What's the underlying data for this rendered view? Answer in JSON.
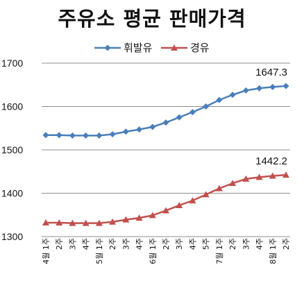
{
  "chart_data": {
    "type": "line",
    "title": "주유소 평균 판매가격",
    "categories": [
      "4월 1주",
      "2주",
      "3주",
      "4주",
      "5월 1주",
      "2주",
      "3주",
      "4주",
      "6월 1주",
      "2주",
      "3주",
      "4주",
      "5주",
      "7월 1주",
      "2주",
      "3주",
      "4주",
      "8월 1주",
      "2주"
    ],
    "series": [
      {
        "name": "휘발유",
        "color": "#4a7ebb",
        "values": [
          1534,
          1534,
          1533,
          1533,
          1533,
          1536,
          1542,
          1547,
          1553,
          1563,
          1575,
          1587,
          1600,
          1615,
          1627,
          1637,
          1642,
          1645,
          1647.3
        ]
      },
      {
        "name": "경유",
        "color": "#c0504d",
        "values": [
          1332,
          1332,
          1331,
          1331,
          1331,
          1334,
          1339,
          1343,
          1349,
          1360,
          1372,
          1383,
          1397,
          1411,
          1423,
          1433,
          1437,
          1440,
          1442.2
        ]
      }
    ],
    "ylim": [
      1300,
      1700
    ],
    "yticks": [
      "1300",
      "1400",
      "1500",
      "1600",
      "1700"
    ],
    "grid": true,
    "legend": "top-center",
    "data_labels": [
      {
        "series": 0,
        "index": 18,
        "text": "1647.3"
      },
      {
        "series": 1,
        "index": 18,
        "text": "1442.2"
      }
    ]
  }
}
